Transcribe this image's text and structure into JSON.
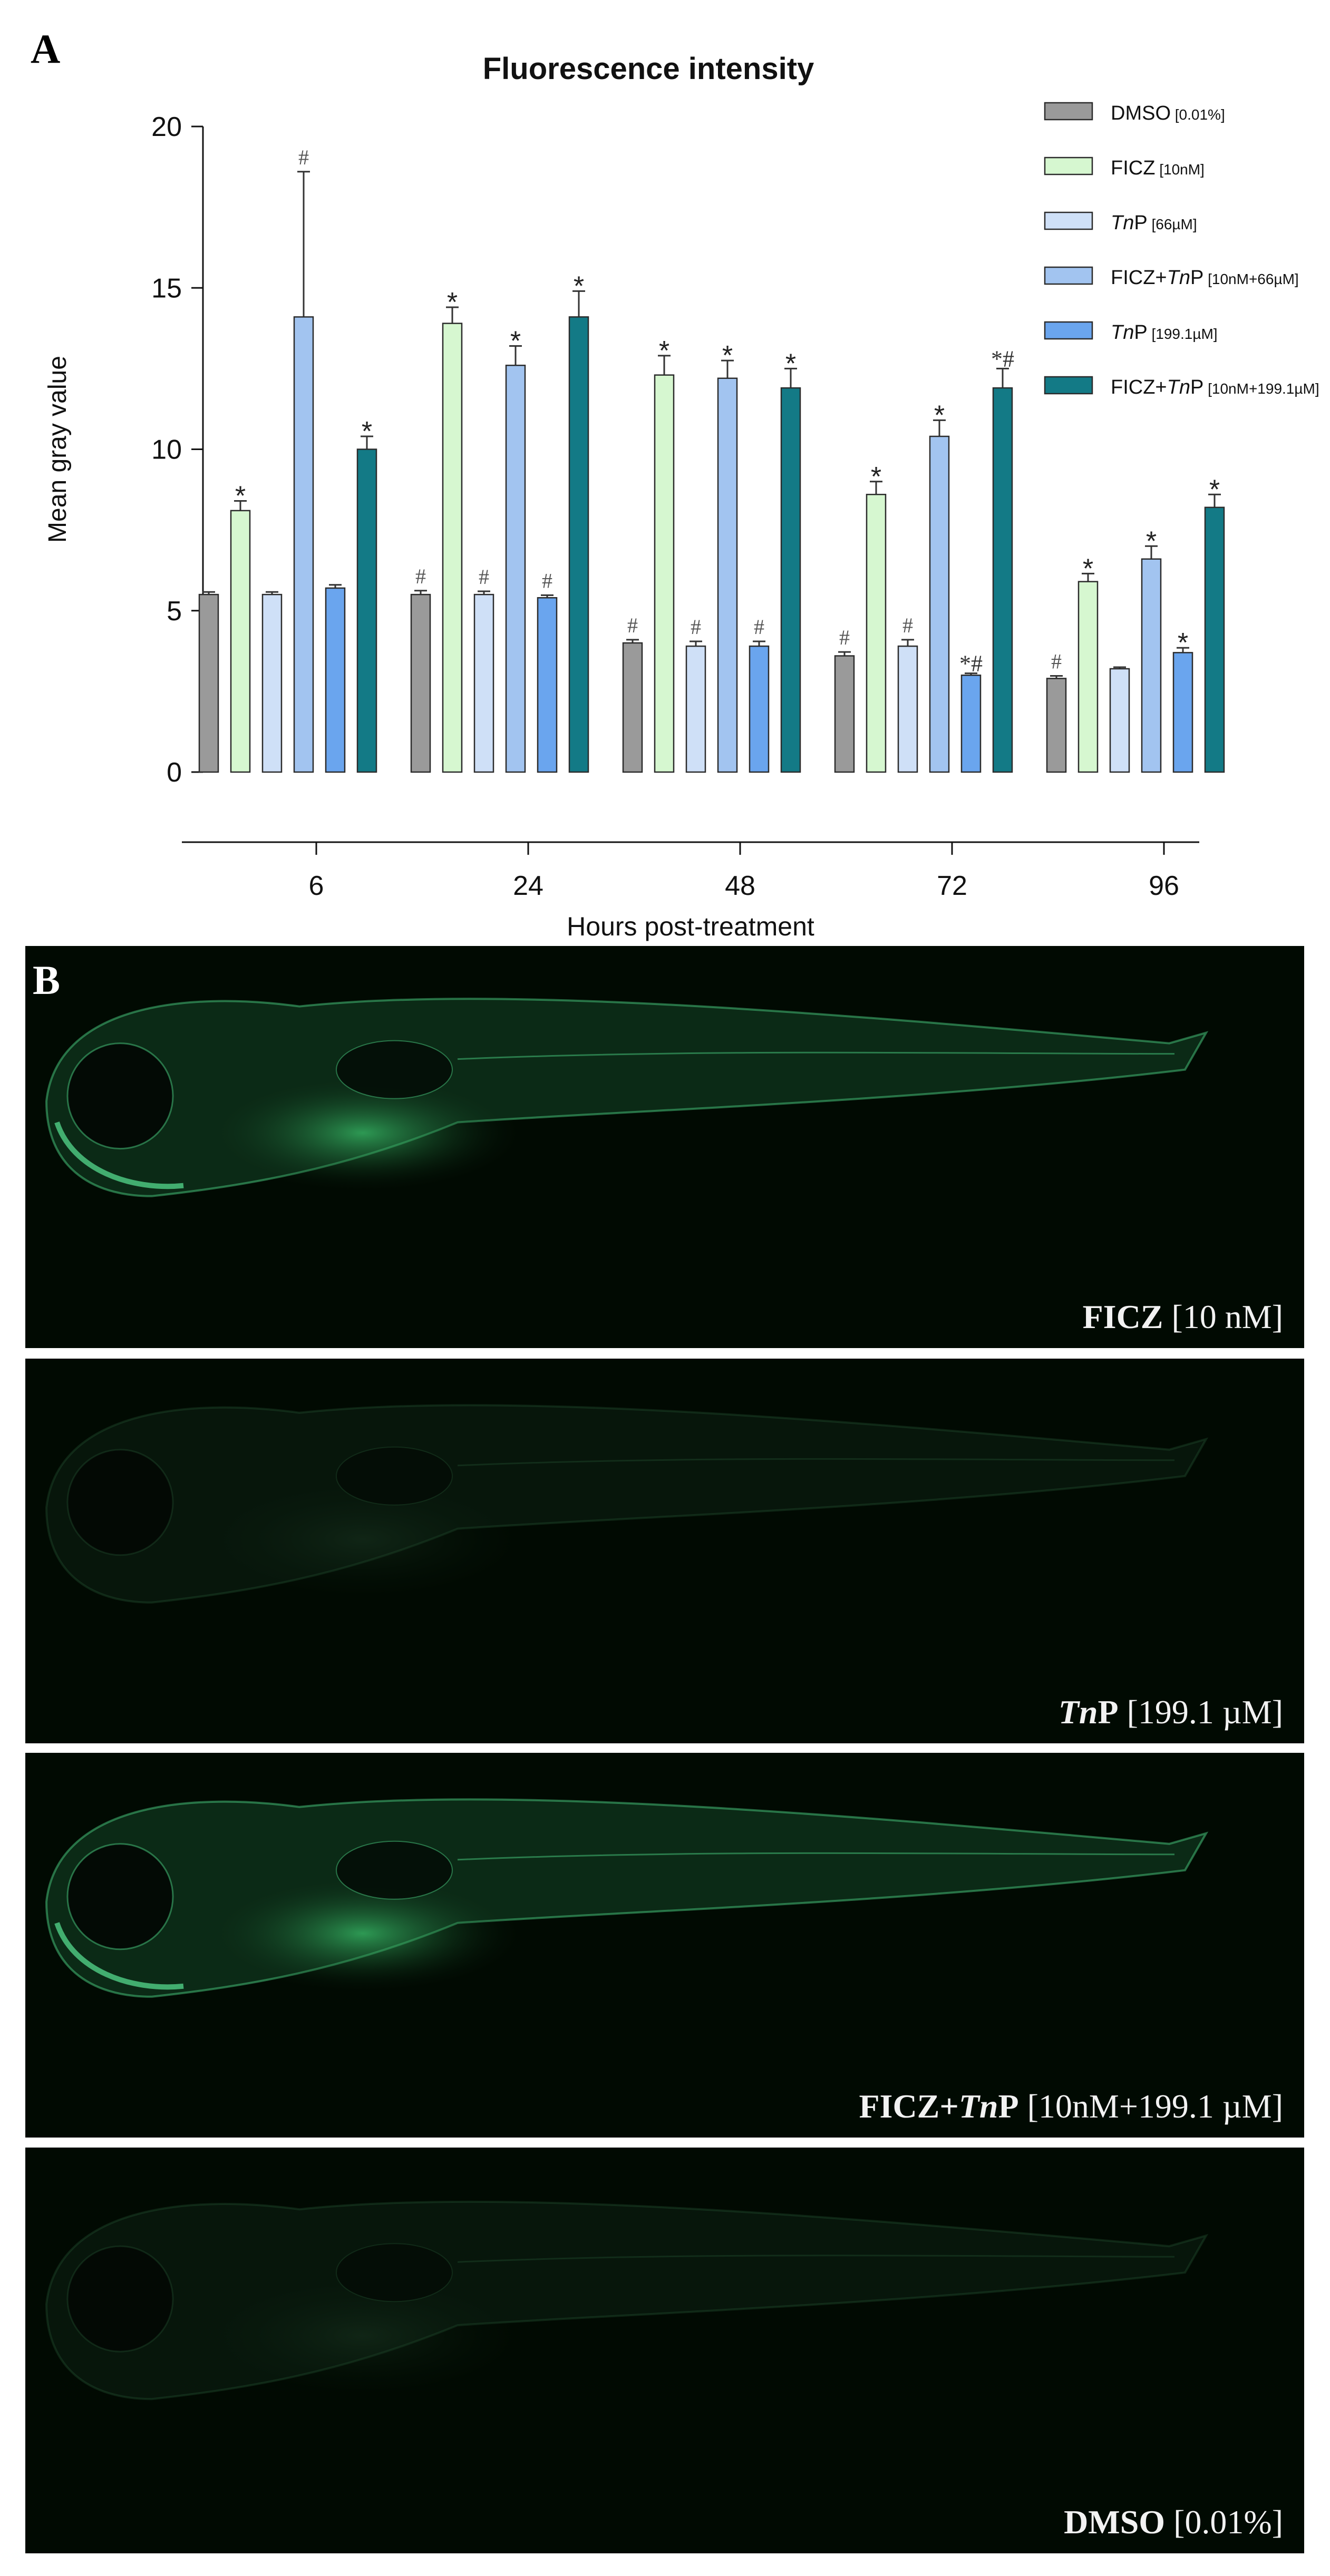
{
  "panel_a": {
    "letter": "A"
  },
  "panel_b": {
    "letter": "B"
  },
  "chart_data": {
    "type": "bar",
    "title": "Fluorescence intensity",
    "xlabel": "Hours post-treatment",
    "ylabel": "Mean gray value",
    "ylim": [
      0,
      20
    ],
    "yticks": [
      "0",
      "5",
      "10",
      "15",
      "20"
    ],
    "categories": [
      "6",
      "24",
      "48",
      "72",
      "96"
    ],
    "legend_position": "top-right",
    "series": [
      {
        "name": "DMSO",
        "conc": "[0.01%]",
        "color": "#9a9a9a",
        "values": [
          5.5,
          5.5,
          4.0,
          3.6,
          2.9
        ],
        "errors": [
          0.08,
          0.12,
          0.1,
          0.12,
          0.08
        ],
        "marks": [
          "",
          "#",
          "#",
          "#",
          "#"
        ]
      },
      {
        "name": "FICZ",
        "conc": "[10nM]",
        "color": "#d6f7d0",
        "values": [
          8.1,
          13.9,
          12.3,
          8.6,
          5.9
        ],
        "errors": [
          0.3,
          0.5,
          0.6,
          0.4,
          0.25
        ],
        "marks": [
          "*",
          "*",
          "*",
          "*",
          "*"
        ]
      },
      {
        "name": "TnP",
        "conc": "[66µM]",
        "color": "#cfe0f7",
        "values": [
          5.5,
          5.5,
          3.9,
          3.9,
          3.2
        ],
        "errors": [
          0.08,
          0.1,
          0.15,
          0.2,
          0.05
        ],
        "marks": [
          "",
          "#",
          "#",
          "#",
          ""
        ]
      },
      {
        "name": "FICZ+TnP",
        "conc": "[10nM+66µM]",
        "color": "#a2c4f0",
        "values": [
          14.1,
          12.6,
          12.2,
          10.4,
          6.6
        ],
        "errors": [
          4.5,
          0.6,
          0.55,
          0.5,
          0.4
        ],
        "marks": [
          "#",
          "*",
          "*",
          "*",
          "*"
        ]
      },
      {
        "name": "TnP",
        "conc": "[199.1µM]",
        "color": "#6aa5ee",
        "values": [
          5.7,
          5.4,
          3.9,
          3.0,
          3.7
        ],
        "errors": [
          0.1,
          0.08,
          0.15,
          0.06,
          0.15
        ],
        "marks": [
          "",
          "#",
          "#",
          "*#",
          "*"
        ]
      },
      {
        "name": "FICZ+TnP",
        "conc": "[10nM+199.1µM]",
        "color": "#137a86",
        "values": [
          10.0,
          14.1,
          11.9,
          11.9,
          8.2
        ],
        "errors": [
          0.4,
          0.8,
          0.6,
          0.6,
          0.4
        ],
        "marks": [
          "*",
          "*",
          "*",
          "*#",
          "*"
        ]
      }
    ]
  },
  "images": [
    {
      "a": "FICZ",
      "b": "",
      "c": "",
      "d": "[10 nM]",
      "glow": "bright"
    },
    {
      "a": "",
      "b": "Tn",
      "c": "P",
      "d": "[199.1 µM]",
      "glow": "dim"
    },
    {
      "a": "FICZ+",
      "b": "Tn",
      "c": "P",
      "d": "[10nM+199.1 µM]",
      "glow": "bright"
    },
    {
      "a": "DMSO",
      "b": "",
      "c": "",
      "d": "[0.01%]",
      "glow": "dim"
    }
  ]
}
